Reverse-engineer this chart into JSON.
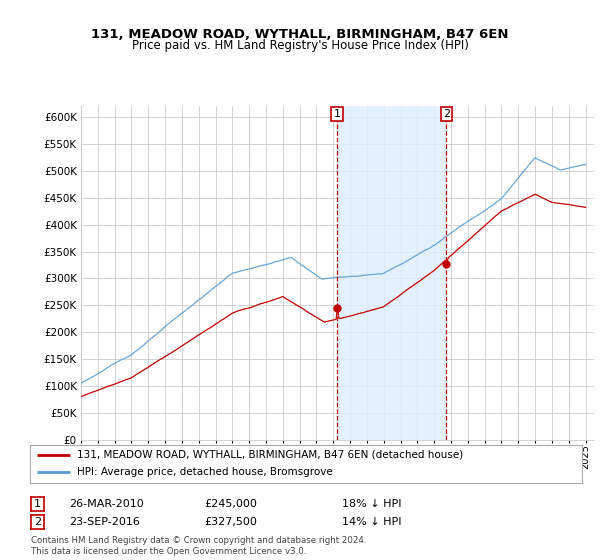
{
  "title": "131, MEADOW ROAD, WYTHALL, BIRMINGHAM, B47 6EN",
  "subtitle": "Price paid vs. HM Land Registry's House Price Index (HPI)",
  "legend_line1": "131, MEADOW ROAD, WYTHALL, BIRMINGHAM, B47 6EN (detached house)",
  "legend_line2": "HPI: Average price, detached house, Bromsgrove",
  "annotation1_label": "1",
  "annotation1_date": "26-MAR-2010",
  "annotation1_price": "£245,000",
  "annotation1_hpi": "18% ↓ HPI",
  "annotation2_label": "2",
  "annotation2_date": "23-SEP-2016",
  "annotation2_price": "£327,500",
  "annotation2_hpi": "14% ↓ HPI",
  "footer": "Contains HM Land Registry data © Crown copyright and database right 2024.\nThis data is licensed under the Open Government Licence v3.0.",
  "sale1_year": 2010.23,
  "sale1_value": 245000,
  "sale2_year": 2016.73,
  "sale2_value": 327500,
  "hpi_color": "#5b9bd5",
  "price_color": "#c00000",
  "vline_color": "#c00000",
  "shade_color": "#ddeeff",
  "grid_color": "#cccccc",
  "ylim_min": 0,
  "ylim_max": 620000,
  "xlim_min": 1995,
  "xlim_max": 2025.5,
  "background_color": "#ffffff",
  "chart_bg": "#ffffff"
}
